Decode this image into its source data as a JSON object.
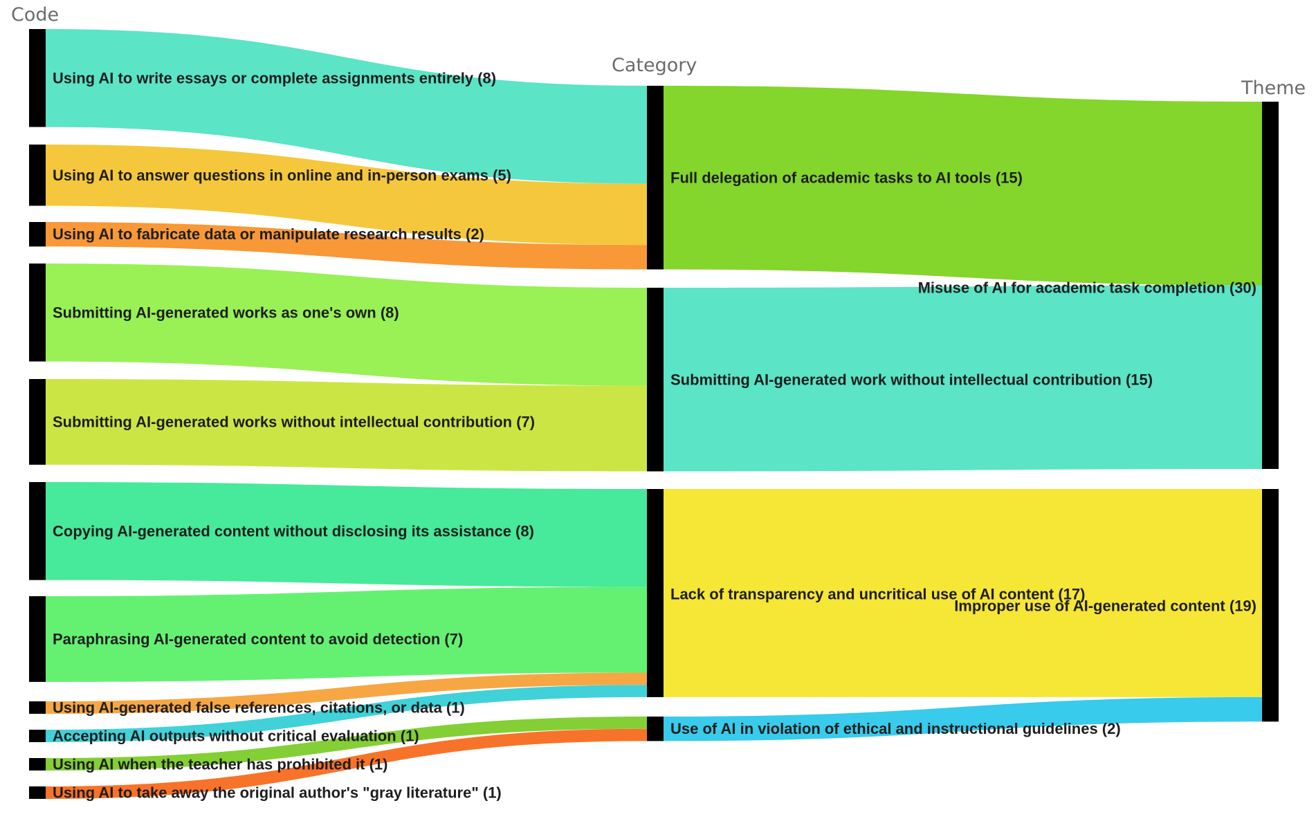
{
  "columns": {
    "code": "Code",
    "category": "Category",
    "theme": "Theme"
  },
  "chart_data": {
    "type": "sankey",
    "nodes": {
      "codes": [
        {
          "id": "c1",
          "label": "Using AI to write essays or complete assignments entirely (8)",
          "value": 8
        },
        {
          "id": "c2",
          "label": "Using AI to answer questions in online and in-person exams (5)",
          "value": 5
        },
        {
          "id": "c3",
          "label": "Using AI to fabricate data or manipulate research results (2)",
          "value": 2
        },
        {
          "id": "c4",
          "label": "Submitting AI-generated works as one's own (8)",
          "value": 8
        },
        {
          "id": "c5",
          "label": "Submitting AI-generated works without intellectual contribution (7)",
          "value": 7
        },
        {
          "id": "c6",
          "label": "Copying AI-generated content without disclosing its assistance (8)",
          "value": 8
        },
        {
          "id": "c7",
          "label": "Paraphrasing AI-generated content to avoid detection (7)",
          "value": 7
        },
        {
          "id": "c8",
          "label": "Using AI-generated false references, citations, or data (1)",
          "value": 1
        },
        {
          "id": "c9",
          "label": "Accepting AI outputs without critical evaluation (1)",
          "value": 1
        },
        {
          "id": "c10",
          "label": "Using AI when the teacher has prohibited it (1)",
          "value": 1
        },
        {
          "id": "c11",
          "label": "Using AI to take away the original author's \"gray literature\" (1)",
          "value": 1
        }
      ],
      "categories": [
        {
          "id": "k1",
          "label": "Full delegation of academic tasks to AI tools (15)",
          "value": 15
        },
        {
          "id": "k2",
          "label": "Submitting AI-generated work without intellectual contribution (15)",
          "value": 15
        },
        {
          "id": "k3",
          "label": "Lack of transparency and uncritical use of AI content (17)",
          "value": 17
        },
        {
          "id": "k4",
          "label": "Use of AI in violation of ethical and instructional guidelines (2)",
          "value": 2
        }
      ],
      "themes": [
        {
          "id": "t1",
          "label": "Misuse of AI for academic task completion (30)",
          "value": 30
        },
        {
          "id": "t2",
          "label": "Improper use of AI-generated content (19)",
          "value": 19
        }
      ]
    },
    "links": [
      {
        "source": "c1",
        "target": "k1",
        "value": 8,
        "color": "#52e3c3"
      },
      {
        "source": "c2",
        "target": "k1",
        "value": 5,
        "color": "#f4c431"
      },
      {
        "source": "c3",
        "target": "k1",
        "value": 2,
        "color": "#f8922c"
      },
      {
        "source": "c4",
        "target": "k2",
        "value": 8,
        "color": "#93f04c"
      },
      {
        "source": "c5",
        "target": "k2",
        "value": 7,
        "color": "#c8e53a"
      },
      {
        "source": "c6",
        "target": "k3",
        "value": 8,
        "color": "#3de895"
      },
      {
        "source": "c7",
        "target": "k3",
        "value": 7,
        "color": "#5cf06a"
      },
      {
        "source": "c8",
        "target": "k3",
        "value": 1,
        "color": "#f5a23a"
      },
      {
        "source": "c9",
        "target": "k3",
        "value": 1,
        "color": "#37cfd6"
      },
      {
        "source": "c10",
        "target": "k4",
        "value": 1,
        "color": "#7ccc2a"
      },
      {
        "source": "c11",
        "target": "k4",
        "value": 1,
        "color": "#f76b1f"
      },
      {
        "source": "k1",
        "target": "t1",
        "value": 15,
        "color": "#7dd321"
      },
      {
        "source": "k2",
        "target": "t1",
        "value": 15,
        "color": "#52e3c3"
      },
      {
        "source": "k3",
        "target": "t2",
        "value": 17,
        "color": "#f5e52a"
      },
      {
        "source": "k4",
        "target": "t2",
        "value": 2,
        "color": "#2dc8ea"
      }
    ]
  }
}
